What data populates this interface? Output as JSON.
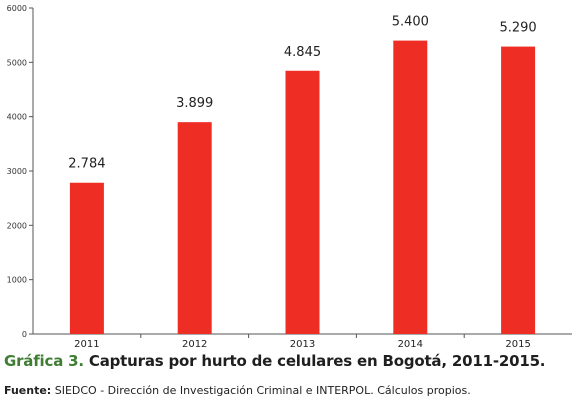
{
  "caption": {
    "number": "Gráfica 3.",
    "title": "Capturas por hurto de celulares en Bogotá, 2011-2015."
  },
  "source": {
    "label": "Fuente:",
    "text": "SIEDCO - Dirección de Investigación Criminal e INTERPOL. Cálculos propios."
  },
  "chart_data": {
    "type": "bar",
    "categories": [
      "2011",
      "2012",
      "2013",
      "2014",
      "2015"
    ],
    "values": [
      2784,
      3899,
      4845,
      5400,
      5290
    ],
    "data_labels": [
      "2.784",
      "3.899",
      "4.845",
      "5.400",
      "5.290"
    ],
    "yticks": [
      0,
      1000,
      2000,
      3000,
      4000,
      5000,
      6000
    ],
    "ytick_labels": [
      "0",
      "1000",
      "2000",
      "3000",
      "4000",
      "5000",
      "6000"
    ],
    "ylim": [
      0,
      6000
    ],
    "grid": false,
    "legend": "none",
    "bar_color": "#ee2e24",
    "axis_color": "#555555"
  }
}
